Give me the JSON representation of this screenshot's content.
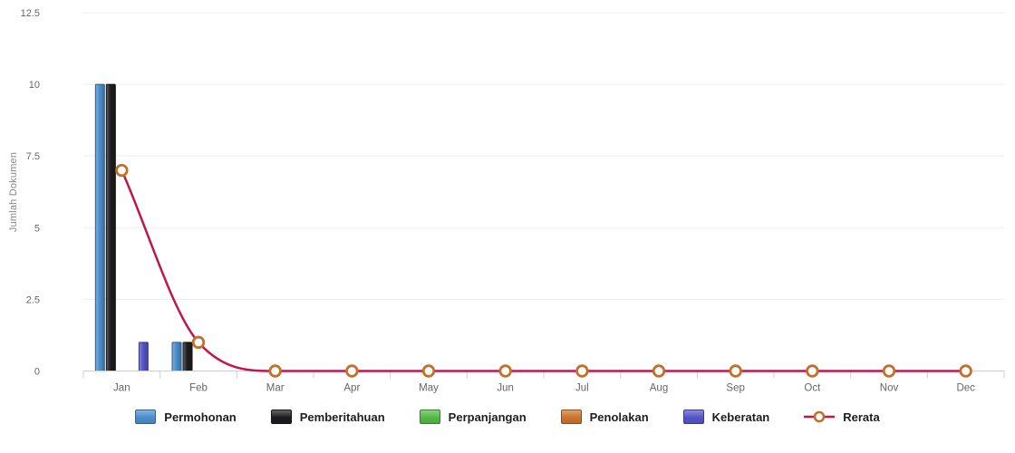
{
  "chart_data": {
    "type": "bar",
    "title": "",
    "categories": [
      "Jan",
      "Feb",
      "Mar",
      "Apr",
      "May",
      "Jun",
      "Jul",
      "Aug",
      "Sep",
      "Oct",
      "Nov",
      "Dec"
    ],
    "series": [
      {
        "name": "Permohonan",
        "kind": "bar",
        "color": "#4a8ecd",
        "values": [
          10,
          1,
          0,
          0,
          0,
          0,
          0,
          0,
          0,
          0,
          0,
          0
        ]
      },
      {
        "name": "Pemberitahuan",
        "kind": "bar",
        "color": "#1d1d1f",
        "values": [
          10,
          1,
          0,
          0,
          0,
          0,
          0,
          0,
          0,
          0,
          0,
          0
        ]
      },
      {
        "name": "Perpanjangan",
        "kind": "bar",
        "color": "#54b845",
        "values": [
          0,
          0,
          0,
          0,
          0,
          0,
          0,
          0,
          0,
          0,
          0,
          0
        ]
      },
      {
        "name": "Penolakan",
        "kind": "bar",
        "color": "#c8742f",
        "values": [
          0,
          0,
          0,
          0,
          0,
          0,
          0,
          0,
          0,
          0,
          0,
          0
        ]
      },
      {
        "name": "Keberatan",
        "kind": "bar",
        "color": "#5554c6",
        "values": [
          1,
          0,
          0,
          0,
          0,
          0,
          0,
          0,
          0,
          0,
          0,
          0
        ]
      },
      {
        "name": "Rerata",
        "kind": "line",
        "color": "#c01550",
        "marker_color": "#c0712e",
        "marker_fill": "#ffffff",
        "values": [
          7,
          1,
          0,
          0,
          0,
          0,
          0,
          0,
          0,
          0,
          0,
          0
        ]
      }
    ],
    "xlabel": "",
    "ylabel": "Jumlah Dokumen",
    "ylim": [
      0,
      12.5
    ],
    "yticks": [
      0,
      2.5,
      5,
      7.5,
      10,
      12.5
    ],
    "grid": true,
    "legend_position": "bottom"
  },
  "colors": {
    "background": "#ffffff",
    "grid_line": "#ededed",
    "axis_line": "#c5d0de",
    "tick_label": "#666666",
    "axis_title": "#878787",
    "legend_label": "#1e1e1e"
  }
}
